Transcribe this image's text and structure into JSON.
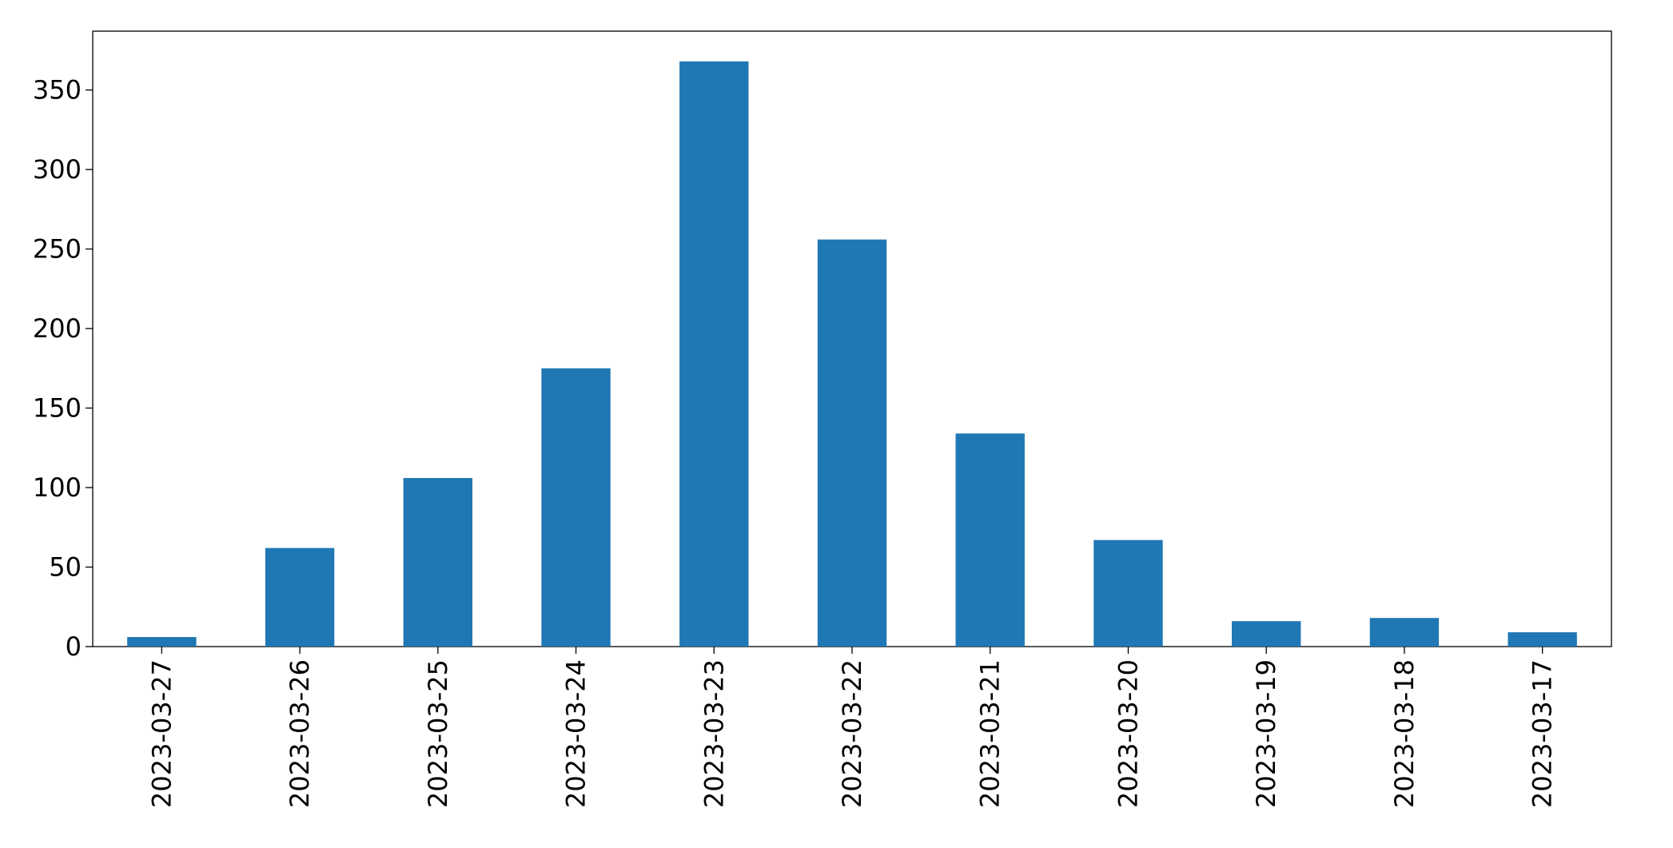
{
  "chart_data": {
    "type": "bar",
    "categories": [
      "2023-03-27",
      "2023-03-26",
      "2023-03-25",
      "2023-03-24",
      "2023-03-23",
      "2023-03-22",
      "2023-03-21",
      "2023-03-20",
      "2023-03-19",
      "2023-03-18",
      "2023-03-17"
    ],
    "values": [
      6,
      62,
      106,
      175,
      368,
      256,
      134,
      67,
      16,
      18,
      9
    ],
    "color": "#1f77b4",
    "ylim": [
      0,
      387
    ],
    "yticks": [
      0,
      50,
      100,
      150,
      200,
      250,
      300,
      350
    ],
    "grid": false
  }
}
